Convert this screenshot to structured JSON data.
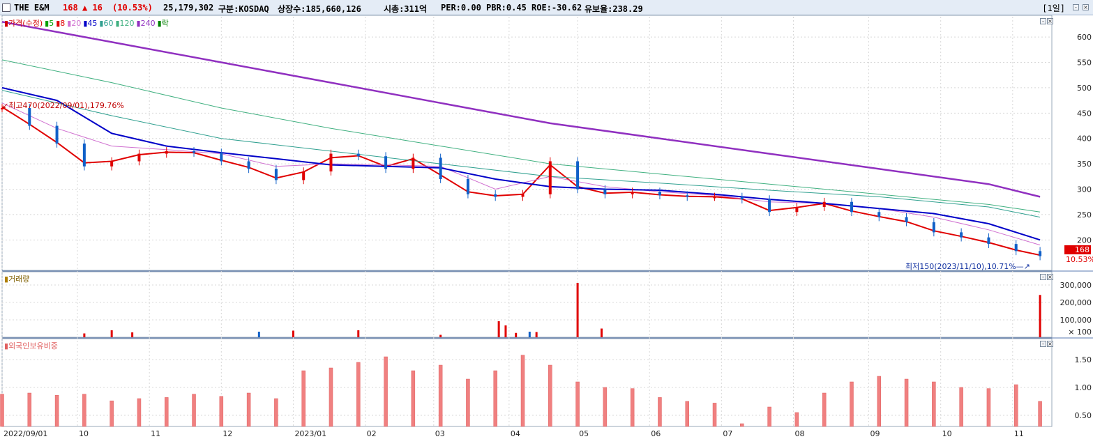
{
  "header": {
    "name": "THE E&M",
    "price": "168",
    "change": "▲ 16",
    "change_pct": "(10.53%)",
    "volume": "25,179,302",
    "market": "구분:KOSDAQ",
    "listed": "상장수:185,660,126",
    "mktcap": "시총:311억",
    "per": "PER:0.00",
    "pbr": "PBR:0.45",
    "roe": "ROE:-30.62",
    "float": "유보율:238.29",
    "period": "[1일]"
  },
  "price_legend": [
    {
      "text": "가격(수정)",
      "color": "#d40000"
    },
    {
      "text": "5",
      "color": "#00a000"
    },
    {
      "text": "8",
      "color": "#e00000"
    },
    {
      "text": "20",
      "color": "#d070d0"
    },
    {
      "text": "45",
      "color": "#0000c8"
    },
    {
      "text": "60",
      "color": "#30a090"
    },
    {
      "text": "120",
      "color": "#40b080"
    },
    {
      "text": "240",
      "color": "#9030c0"
    },
    {
      "text": "락",
      "color": "#008000"
    }
  ],
  "volume_legend": "거래량",
  "foreign_legend": "외국인보유비중",
  "annotations": {
    "high": "최고470(2022/09/01),179.76%",
    "low": "최저150(2023/11/10),10.71%",
    "last_price": "168",
    "last_pct": "10.53%"
  },
  "colors": {
    "up": "#e00000",
    "down": "#1060c8",
    "foreign_bar": "#f08080",
    "grid": "#d8d8d8"
  },
  "chart_data": [
    {
      "type": "line",
      "title": "가격(수정)",
      "y_ticks": [
        200,
        250,
        300,
        350,
        400,
        450,
        500,
        550,
        600
      ],
      "ylim": [
        140,
        640
      ],
      "x_tick_labels": [
        "2022/09/01",
        "10",
        "11",
        "12",
        "2023/01",
        "02",
        "03",
        "04",
        "05",
        "06",
        "07",
        "08",
        "09",
        "10",
        "11"
      ],
      "x_tick_days": [
        0,
        22,
        43,
        64,
        85,
        106,
        126,
        148,
        168,
        189,
        210,
        231,
        253,
        274,
        295
      ],
      "n_days": 304,
      "series": [
        {
          "name": "가격(수정)",
          "style": "candle",
          "x": [
            0,
            8,
            16,
            24,
            32,
            40,
            48,
            56,
            64,
            72,
            80,
            88,
            96,
            104,
            112,
            120,
            128,
            136,
            144,
            152,
            160,
            168,
            176,
            184,
            192,
            200,
            208,
            216,
            224,
            232,
            240,
            248,
            256,
            264,
            272,
            280,
            288,
            296,
            303
          ],
          "values": [
            460,
            425,
            390,
            345,
            355,
            370,
            375,
            372,
            355,
            340,
            318,
            335,
            370,
            365,
            340,
            362,
            320,
            290,
            285,
            290,
            355,
            300,
            290,
            295,
            288,
            285,
            285,
            280,
            255,
            265,
            275,
            255,
            245,
            235,
            215,
            205,
            192,
            178,
            168
          ]
        },
        {
          "name": "8",
          "x": [
            0,
            8,
            16,
            24,
            32,
            40,
            48,
            56,
            64,
            72,
            80,
            88,
            96,
            104,
            112,
            120,
            128,
            136,
            144,
            152,
            160,
            168,
            176,
            184,
            192,
            200,
            208,
            216,
            224,
            232,
            240,
            248,
            256,
            264,
            272,
            280,
            288,
            296,
            303
          ],
          "values": [
            462,
            428,
            392,
            352,
            355,
            368,
            373,
            372,
            357,
            343,
            322,
            334,
            362,
            366,
            345,
            360,
            328,
            295,
            287,
            290,
            348,
            305,
            292,
            294,
            289,
            286,
            285,
            281,
            258,
            264,
            272,
            257,
            246,
            236,
            218,
            207,
            195,
            180,
            170
          ]
        },
        {
          "name": "20",
          "x": [
            0,
            16,
            32,
            48,
            64,
            80,
            96,
            112,
            128,
            144,
            160,
            176,
            192,
            208,
            224,
            240,
            256,
            272,
            288,
            303
          ],
          "values": [
            470,
            420,
            385,
            378,
            370,
            345,
            350,
            348,
            345,
            300,
            325,
            305,
            295,
            288,
            275,
            272,
            262,
            245,
            220,
            190
          ]
        },
        {
          "name": "45",
          "x": [
            0,
            16,
            32,
            48,
            64,
            80,
            96,
            112,
            128,
            144,
            160,
            176,
            192,
            208,
            224,
            240,
            256,
            272,
            288,
            303
          ],
          "values": [
            500,
            475,
            410,
            385,
            372,
            360,
            348,
            345,
            342,
            320,
            305,
            300,
            298,
            290,
            280,
            272,
            262,
            252,
            232,
            200
          ]
        },
        {
          "name": "60",
          "x": [
            0,
            32,
            64,
            96,
            128,
            160,
            192,
            224,
            256,
            288,
            303
          ],
          "values": [
            495,
            445,
            400,
            375,
            350,
            325,
            312,
            298,
            285,
            265,
            245
          ]
        },
        {
          "name": "120",
          "x": [
            0,
            32,
            64,
            96,
            128,
            160,
            192,
            224,
            256,
            288,
            303
          ],
          "values": [
            555,
            510,
            460,
            420,
            385,
            350,
            330,
            310,
            290,
            270,
            255
          ]
        },
        {
          "name": "240",
          "x": [
            0,
            32,
            64,
            96,
            128,
            160,
            192,
            224,
            256,
            288,
            303
          ],
          "values": [
            630,
            590,
            550,
            510,
            470,
            430,
            400,
            370,
            340,
            310,
            285
          ]
        }
      ]
    },
    {
      "type": "bar",
      "title": "거래량",
      "y_ticks": [
        100000,
        200000,
        300000
      ],
      "y_tick_labels": [
        "100,000",
        "200,000",
        "300,000"
      ],
      "unit_label": "× 100",
      "ylim": [
        0,
        320000
      ],
      "x": [
        24,
        32,
        38,
        75,
        85,
        104,
        128,
        145,
        147,
        150,
        154,
        156,
        168,
        175,
        303
      ],
      "values": [
        22000,
        40000,
        28000,
        32000,
        38000,
        40000,
        14000,
        92000,
        68000,
        25000,
        32000,
        30000,
        312000,
        50000,
        243000
      ],
      "up": [
        true,
        true,
        true,
        false,
        true,
        true,
        true,
        true,
        true,
        true,
        false,
        true,
        true,
        true,
        true
      ]
    },
    {
      "type": "bar",
      "title": "외국인보유비중",
      "y_ticks": [
        0.5,
        1.0,
        1.5
      ],
      "y_tick_labels": [
        "0.50",
        "1.00",
        "1.50"
      ],
      "ylim": [
        0.3,
        1.7
      ],
      "x": [
        0,
        8,
        16,
        24,
        32,
        40,
        48,
        56,
        64,
        72,
        80,
        88,
        96,
        104,
        112,
        120,
        128,
        136,
        144,
        152,
        160,
        168,
        176,
        184,
        192,
        200,
        208,
        216,
        224,
        232,
        240,
        248,
        256,
        264,
        272,
        280,
        288,
        296,
        303
      ],
      "values": [
        0.88,
        0.9,
        0.86,
        0.88,
        0.76,
        0.8,
        0.82,
        0.88,
        0.84,
        0.9,
        0.8,
        1.3,
        1.35,
        1.45,
        1.55,
        1.3,
        1.4,
        1.15,
        1.3,
        1.58,
        1.4,
        1.1,
        1.0,
        0.98,
        0.82,
        0.75,
        0.72,
        0.35,
        0.65,
        0.55,
        0.9,
        1.1,
        1.2,
        1.15,
        1.1,
        1.0,
        0.98,
        1.05,
        0.75
      ]
    }
  ]
}
